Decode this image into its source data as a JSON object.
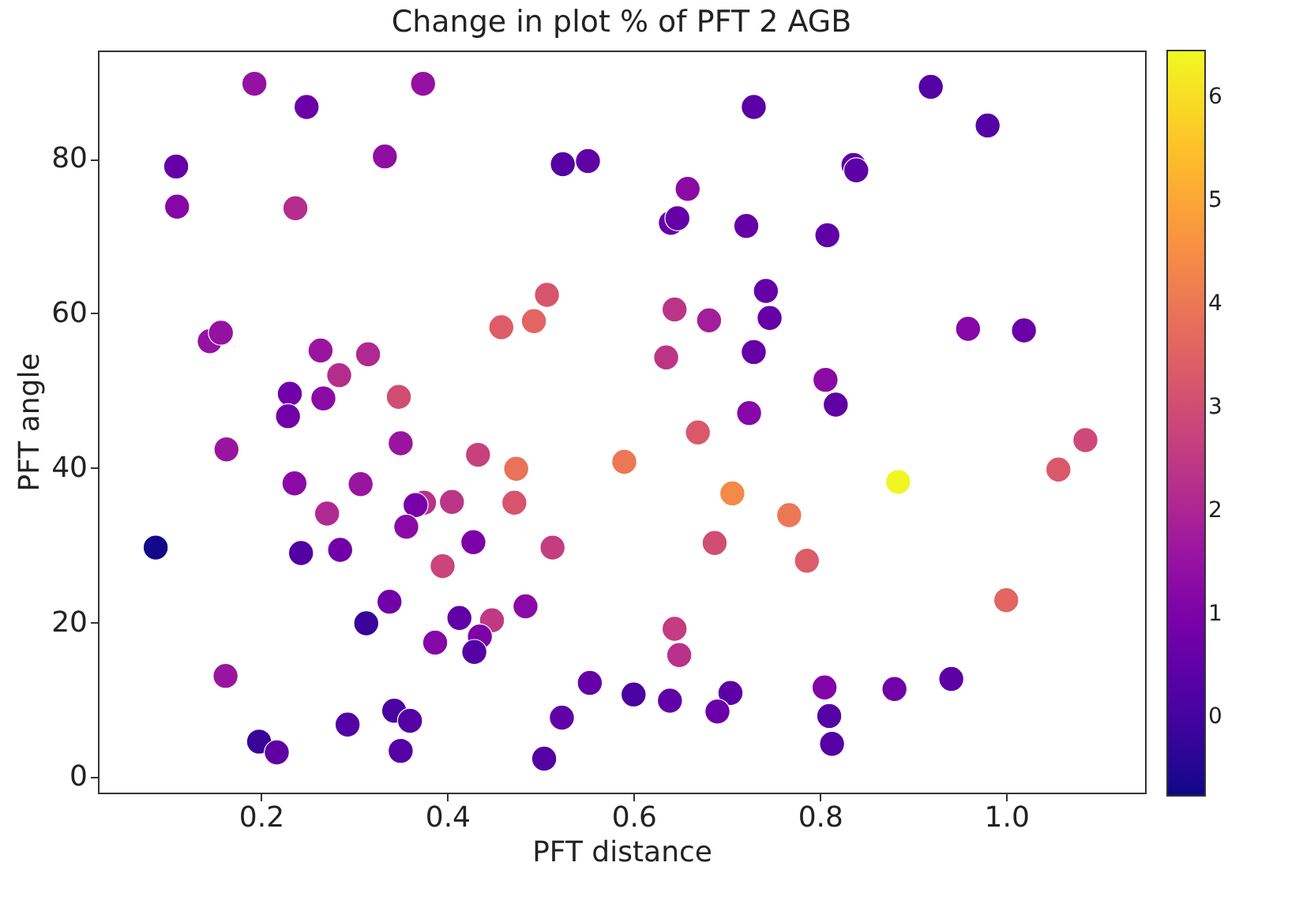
{
  "chart_data": {
    "type": "scatter",
    "title": "Change in plot % of PFT 2 AGB",
    "xlabel": "PFT distance",
    "ylabel": "PFT angle",
    "marker": "circle",
    "x": [
      0.193,
      0.249,
      0.374,
      0.109,
      0.333,
      0.524,
      0.551,
      0.11,
      0.237,
      0.507,
      0.493,
      0.458,
      0.145,
      0.157,
      0.264,
      0.315,
      0.284,
      0.231,
      0.267,
      0.348,
      0.229,
      0.729,
      0.919,
      0.98,
      0.836,
      0.839,
      0.658,
      0.64,
      0.647,
      0.721,
      0.808,
      0.742,
      0.746,
      0.644,
      0.681,
      0.635,
      0.729,
      0.959,
      1.019,
      0.806,
      0.817,
      0.724,
      0.163,
      0.35,
      0.433,
      0.474,
      0.236,
      0.307,
      0.271,
      0.375,
      0.366,
      0.405,
      0.472,
      0.356,
      0.428,
      0.513,
      0.087,
      0.243,
      0.285,
      0.395,
      0.338,
      0.484,
      0.313,
      0.413,
      0.448,
      0.387,
      0.435,
      0.429,
      0.162,
      0.553,
      0.523,
      0.504,
      0.343,
      0.36,
      0.293,
      0.35,
      0.198,
      0.217,
      0.669,
      0.59,
      0.706,
      0.767,
      0.884,
      1.056,
      1.085,
      0.687,
      0.786,
      1.0,
      0.644,
      0.649,
      0.6,
      0.639,
      0.704,
      0.69,
      0.805,
      0.81,
      0.813,
      0.88,
      0.941
    ],
    "values": [
      89.7,
      86.7,
      89.7,
      79.0,
      80.3,
      79.3,
      79.7,
      73.8,
      73.6,
      62.4,
      59.0,
      58.2,
      56.4,
      57.5,
      55.2,
      54.7,
      52.0,
      49.6,
      49.0,
      49.2,
      46.7,
      86.7,
      89.3,
      84.3,
      79.2,
      78.5,
      76.1,
      71.7,
      72.3,
      71.3,
      70.1,
      62.9,
      59.4,
      60.5,
      59.1,
      54.3,
      55.0,
      58.0,
      57.8,
      51.4,
      48.2,
      47.1,
      42.4,
      43.2,
      41.7,
      39.9,
      38.0,
      37.9,
      34.1,
      35.5,
      35.2,
      35.6,
      35.5,
      32.4,
      30.4,
      29.7,
      29.7,
      29.0,
      29.4,
      27.3,
      22.7,
      22.1,
      19.9,
      20.6,
      20.3,
      17.4,
      18.2,
      16.2,
      13.1,
      12.2,
      7.7,
      2.4,
      8.6,
      7.3,
      6.8,
      3.4,
      4.6,
      3.2,
      44.6,
      40.8,
      36.7,
      33.9,
      38.2,
      39.8,
      43.6,
      30.3,
      28.0,
      22.9,
      19.2,
      15.8,
      10.7,
      9.9,
      10.9,
      8.5,
      11.6,
      7.9,
      4.3,
      11.4,
      12.7
    ],
    "cvalues": [
      1.5,
      0.7,
      1.5,
      0.6,
      1.4,
      0.3,
      0.5,
      1.2,
      2.2,
      3.2,
      3.6,
      3.4,
      1.5,
      1.5,
      1.6,
      2.1,
      2.2,
      0.8,
      1.3,
      3.0,
      0.8,
      0.4,
      0.3,
      0.3,
      0.4,
      0.4,
      1.3,
      0.6,
      0.6,
      0.6,
      0.5,
      0.6,
      0.6,
      2.4,
      1.8,
      2.4,
      0.6,
      1.2,
      0.7,
      1.3,
      0.5,
      1.2,
      1.6,
      1.6,
      2.7,
      3.9,
      1.3,
      1.6,
      2.1,
      2.3,
      0.9,
      2.4,
      3.2,
      1.3,
      1.0,
      2.6,
      -0.7,
      0.2,
      0.8,
      2.8,
      0.8,
      1.3,
      -0.2,
      0.5,
      2.5,
      1.2,
      1.0,
      0.3,
      1.6,
      0.6,
      0.5,
      0.3,
      0.1,
      0.3,
      0.3,
      0.3,
      -0.2,
      0.5,
      3.3,
      4.0,
      4.4,
      4.0,
      6.4,
      3.3,
      2.9,
      3.0,
      3.4,
      3.6,
      2.6,
      2.3,
      0.1,
      0.5,
      0.4,
      0.7,
      1.1,
      0.3,
      0.3,
      0.8,
      0.4
    ],
    "xlim": [
      0.025,
      1.149
    ],
    "ylim": [
      -2,
      94
    ],
    "xticks": [
      0.2,
      0.4,
      0.6,
      0.8,
      {
        "value": 1,
        "label": "1.0"
      }
    ],
    "yticks": [
      0,
      20,
      40,
      60,
      80
    ],
    "clim": [
      -0.76,
      6.45
    ],
    "cticks": [
      0,
      1,
      2,
      3,
      4,
      5,
      6
    ]
  }
}
